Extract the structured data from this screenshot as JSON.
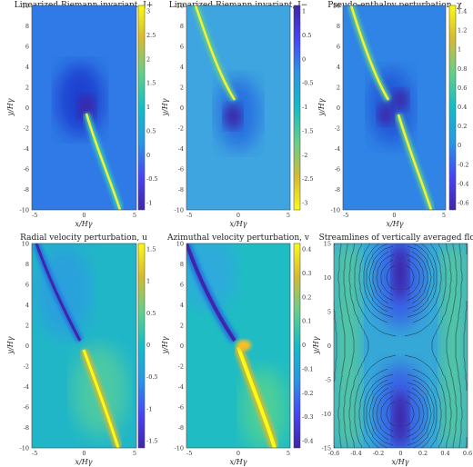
{
  "colormap": [
    "#3e26a8",
    "#4743f8",
    "#2797e8",
    "#12bdc7",
    "#63d08a",
    "#d7ba31",
    "#f9fb14"
  ],
  "chart_data": [
    {
      "type": "heatmap",
      "title": "Linearized Riemann invariant, J+",
      "xlabel": "x/Hγ",
      "ylabel": "y/Hγ",
      "xlim": [
        -5,
        5
      ],
      "ylim": [
        -10,
        10
      ],
      "xticks": [
        "-5",
        "0",
        "5"
      ],
      "yticks": [
        "10",
        "8",
        "6",
        "4",
        "2",
        "0",
        "-2",
        "-4",
        "-6",
        "-8",
        "-10"
      ],
      "clim": [
        -1.2,
        3
      ],
      "colorbar_ticks": [
        "3",
        "2.5",
        "2",
        "1.5",
        "1",
        "0.5",
        "0",
        "-0.5",
        "-1"
      ],
      "features": "bright yellow wake from (0.4,-1) to (4,-10); dark trough near (0,1)"
    },
    {
      "type": "heatmap",
      "title": "Linearized Riemann invariant, J−",
      "xlabel": "x/Hγ",
      "ylabel": "y/Hγ",
      "xlim": [
        -5,
        5
      ],
      "ylim": [
        -10,
        10
      ],
      "xticks": [
        "-5",
        "0",
        "5"
      ],
      "yticks": [
        "10",
        "8",
        "6",
        "4",
        "2",
        "0",
        "-2",
        "-4",
        "-6",
        "-8",
        "-10"
      ],
      "clim": [
        -3,
        1.2
      ],
      "colorbar_ticks": [
        "1",
        "0.5",
        "0",
        "-0.5",
        "-1",
        "-1.5",
        "-2",
        "-2.5",
        "-3"
      ],
      "features": "bright wake from (-4,10) to (-0.4,1) (low values); dark trough near (0,-1)"
    },
    {
      "type": "heatmap",
      "title": "Pseudo-enthalpy perturbation, χ",
      "xlabel": "x/Hγ",
      "ylabel": "y/Hγ",
      "xlim": [
        -5,
        5
      ],
      "ylim": [
        -10,
        10
      ],
      "xticks": [
        "-5",
        "0",
        "5"
      ],
      "yticks": [
        "10",
        "8",
        "6",
        "4",
        "2",
        "0",
        "-2",
        "-4",
        "-6",
        "-8",
        "-10"
      ],
      "clim": [
        -0.7,
        1.5
      ],
      "colorbar_ticks": [
        "1.4",
        "1.2",
        "1",
        "0.8",
        "0.6",
        "0.4",
        "0.2",
        "0",
        "-0.2",
        "-0.4",
        "-0.6"
      ],
      "features": "two bright wakes (upper-left and lower-right), dark dips around origin"
    },
    {
      "type": "heatmap",
      "title": "Radial velocity perturbation, u",
      "xlabel": "x/Hγ",
      "ylabel": "y/Hγ",
      "xlim": [
        -5,
        5
      ],
      "ylim": [
        -10,
        10
      ],
      "xticks": [
        "-5",
        "0",
        "5"
      ],
      "yticks": [
        "10",
        "8",
        "6",
        "4",
        "2",
        "0",
        "-2",
        "-4",
        "-6",
        "-8",
        "-10"
      ],
      "clim": [
        -1.7,
        1.7
      ],
      "colorbar_ticks": [
        "1.5",
        "1",
        "0.5",
        "0",
        "-0.5",
        "-1",
        "-1.5"
      ],
      "features": "negative (blue) wake in upper-left, positive (yellow) wake in lower-right"
    },
    {
      "type": "heatmap",
      "title": "Azimuthal velocity perturbation, v",
      "xlabel": "x/Hγ",
      "ylabel": "y/Hγ",
      "xlim": [
        -5,
        5
      ],
      "ylim": [
        -10,
        10
      ],
      "xticks": [
        "-5",
        "0",
        "5"
      ],
      "yticks": [
        "10",
        "8",
        "6",
        "4",
        "2",
        "0",
        "-2",
        "-4",
        "-6",
        "-8",
        "-10"
      ],
      "clim": [
        -0.45,
        0.45
      ],
      "colorbar_ticks": [
        "0.4",
        "0.3",
        "0.2",
        "0.1",
        "0",
        "-0.1",
        "-0.2",
        "-0.3",
        "-0.4"
      ],
      "features": "blue wake upper-left, yellow wake lower-right, strong yellow near (0.8,0)"
    },
    {
      "type": "heatmap",
      "title": "Streamlines of vertically averaged flow",
      "xlabel": "x/Hγ",
      "ylabel": "y/Hγ",
      "xlim": [
        -0.7,
        0.7
      ],
      "ylim": [
        -15,
        15
      ],
      "xticks": [
        "-0.6",
        "-0.4",
        "-0.2",
        "0",
        "0.2",
        "0.4",
        "0.6"
      ],
      "yticks": [
        "15",
        "10",
        "5",
        "0",
        "-5",
        "-10",
        "-15"
      ],
      "features": "contour streamlines with X-point at origin, closed low regions around (0,±10)"
    }
  ]
}
